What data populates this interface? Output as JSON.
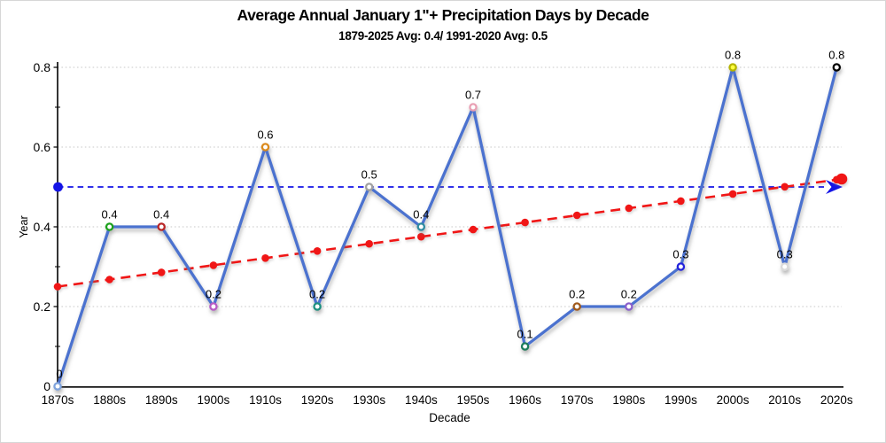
{
  "chart_data": {
    "type": "line",
    "title": "Average Annual January 1\"+ Precipitation Days by Decade",
    "subtitle": "1879-2025 Avg: 0.4/ 1991-2020 Avg: 0.5",
    "xlabel": "Decade",
    "ylabel": "Year",
    "ylim": [
      0,
      0.8
    ],
    "yticks": [
      0,
      0.2,
      0.4,
      0.6,
      0.8
    ],
    "grid": true,
    "legend": false,
    "categories": [
      "1870s",
      "1880s",
      "1890s",
      "1900s",
      "1910s",
      "1920s",
      "1930s",
      "1940s",
      "1950s",
      "1960s",
      "1970s",
      "1980s",
      "1990s",
      "2000s",
      "2010s",
      "2020s"
    ],
    "series": [
      {
        "name": "days-per-decade",
        "type": "line-with-markers",
        "color": "#4B72CF",
        "values": [
          0,
          0.4,
          0.4,
          0.2,
          0.6,
          0.2,
          0.5,
          0.4,
          0.7,
          0.1,
          0.2,
          0.2,
          0.3,
          0.8,
          0.3,
          0.8
        ],
        "data_labels": [
          "0",
          "0.4",
          "0.4",
          "0.2",
          "0.6",
          "0.2",
          "0.5",
          "0.4",
          "0.7",
          "0.1",
          "0.2",
          "0.2",
          "0.3",
          "0.8",
          "0.3",
          "0.8"
        ],
        "marker_border_colors": [
          "#7FA3DC",
          "#1FA11F",
          "#B92525",
          "#B85CC5",
          "#DB8A1E",
          "#1F9180",
          "#A0A0A0",
          "#2F8BA0",
          "#E9A0B4",
          "#1F7D5C",
          "#A05A1E",
          "#8A5FCB",
          "#2323DC",
          "#B5B500",
          "#DADADA",
          "#000000"
        ],
        "marker_fill_colors": [
          "#FFFFFF",
          "#FFFFFF",
          "#FFFFFF",
          "#FFFFFF",
          "#FFFFFF",
          "#FFFFFF",
          "#FFFFFF",
          "#FFFFFF",
          "#FFFFFF",
          "#FFFFFF",
          "#FFFFFF",
          "#FFFFFF",
          "#FFFFFF",
          "#FFFF40",
          "#FFFFFF",
          "#FFFFFF"
        ]
      },
      {
        "name": "linear-trend",
        "type": "dashed-trend-line",
        "color": "#F01414",
        "start_value": 0.25,
        "end_value": 0.52
      },
      {
        "name": "avg-1991-2020-reference",
        "type": "dashed-reference-line",
        "color": "#1414E6",
        "value": 0.5
      }
    ]
  }
}
